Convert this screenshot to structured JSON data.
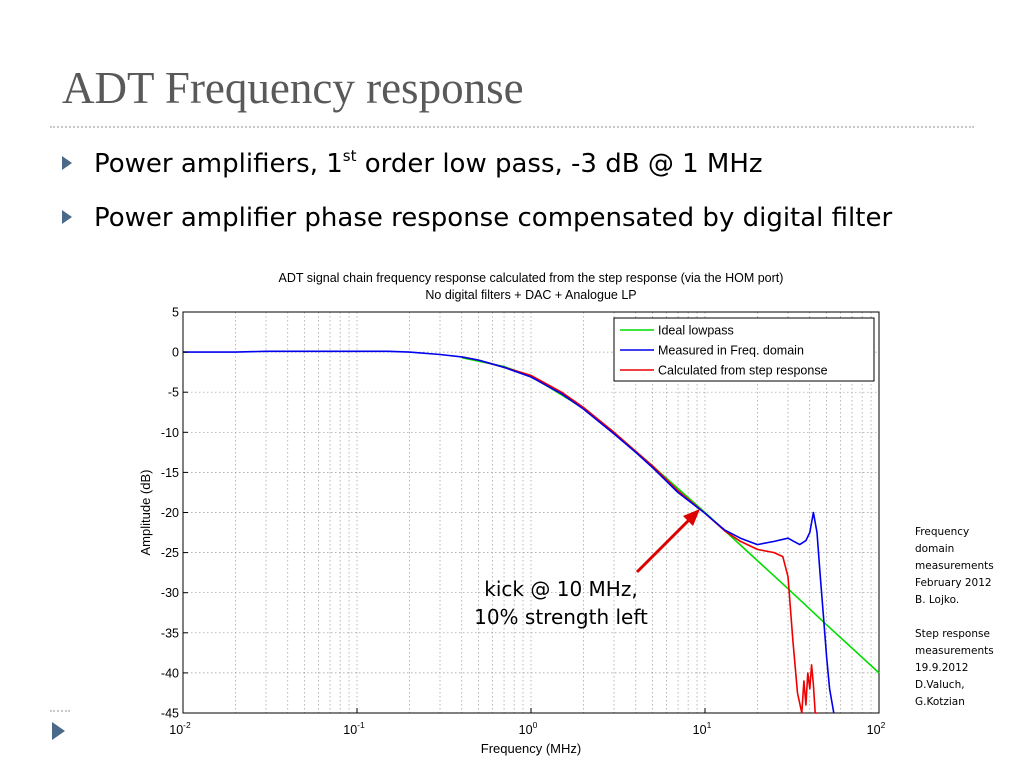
{
  "slide": {
    "title": "ADT Frequency response",
    "bullets": [
      {
        "before": "Power amplifiers, 1",
        "sup": "st",
        "after": " order low pass, -3 dB @ 1 MHz"
      },
      {
        "before": "Power amplifier phase response compensated by digital filter",
        "sup": "",
        "after": ""
      }
    ],
    "annotation": [
      "kick @ 10 MHz,",
      "10% strength left"
    ],
    "side_note": {
      "block1": [
        "Frequency",
        "domain",
        "measurements",
        "February 2012",
        "B. Lojko."
      ],
      "block2": [
        "Step response",
        "measurements",
        "19.9.2012",
        "D.Valuch,",
        "G.Kotzian"
      ]
    }
  },
  "chart_data": {
    "type": "line",
    "title": [
      "ADT signal chain frequency response calculated from the step response (via the HOM port)",
      "No digital filters + DAC + Analogue LP"
    ],
    "xlabel": "Frequency (MHz)",
    "ylabel": "Amplitude (dB)",
    "x_scale": "log",
    "xlim": [
      0.01,
      100
    ],
    "ylim": [
      -45,
      5
    ],
    "x_ticks": [
      {
        "base": "10",
        "exp": "-2"
      },
      {
        "base": "10",
        "exp": "-1"
      },
      {
        "base": "10",
        "exp": "0"
      },
      {
        "base": "10",
        "exp": "1"
      },
      {
        "base": "10",
        "exp": "2"
      }
    ],
    "y_ticks": [
      "5",
      "0",
      "-5",
      "-10",
      "-15",
      "-20",
      "-25",
      "-30",
      "-35",
      "-40",
      "-45"
    ],
    "grid": true,
    "legend_position": "top-right",
    "series": [
      {
        "name": "Ideal lowpass",
        "color": "#00dd00",
        "x": [
          0.4,
          0.7,
          1,
          2,
          3,
          5,
          10,
          20,
          30,
          50,
          100
        ],
        "y": [
          -0.7,
          -1.8,
          -3.0,
          -7.0,
          -10.0,
          -14.2,
          -20.0,
          -26.0,
          -29.5,
          -34.0,
          -40.0
        ]
      },
      {
        "name": "Measured in Freq. domain",
        "color": "#0000ee",
        "x": [
          0.01,
          0.02,
          0.03,
          0.05,
          0.1,
          0.15,
          0.2,
          0.3,
          0.4,
          0.5,
          0.7,
          1,
          1.5,
          2,
          3,
          4,
          5,
          7,
          10,
          13,
          16,
          20,
          25,
          30,
          35,
          38,
          40,
          42,
          44,
          46,
          48,
          50,
          52,
          55
        ],
        "y": [
          0,
          0,
          0.1,
          0.1,
          0.1,
          0.1,
          0,
          -0.3,
          -0.6,
          -1.0,
          -1.9,
          -3.1,
          -5.2,
          -7.1,
          -10.2,
          -12.5,
          -14.4,
          -17.5,
          -20.1,
          -22.2,
          -23.2,
          -24.0,
          -23.6,
          -23.2,
          -24.0,
          -23.5,
          -22.5,
          -20.0,
          -22.5,
          -28.0,
          -33.0,
          -38.0,
          -42.0,
          -45.0
        ]
      },
      {
        "name": "Calculated from step response",
        "color": "#ee0000",
        "x": [
          0.4,
          0.5,
          0.7,
          1,
          1.5,
          2,
          3,
          5,
          7,
          10,
          13,
          16,
          20,
          25,
          28,
          30,
          32,
          34,
          36,
          37,
          38,
          39,
          40,
          41,
          42,
          43,
          44
        ],
        "y": [
          -0.6,
          -1.0,
          -1.9,
          -2.9,
          -5.0,
          -6.9,
          -10.0,
          -14.2,
          -17.3,
          -20.1,
          -22.3,
          -23.6,
          -24.6,
          -25.0,
          -25.5,
          -28.0,
          -36.0,
          -42.5,
          -45.0,
          -41.0,
          -44.0,
          -40.0,
          -42.0,
          -39.0,
          -41.5,
          -45.0,
          -45.0
        ]
      }
    ]
  }
}
